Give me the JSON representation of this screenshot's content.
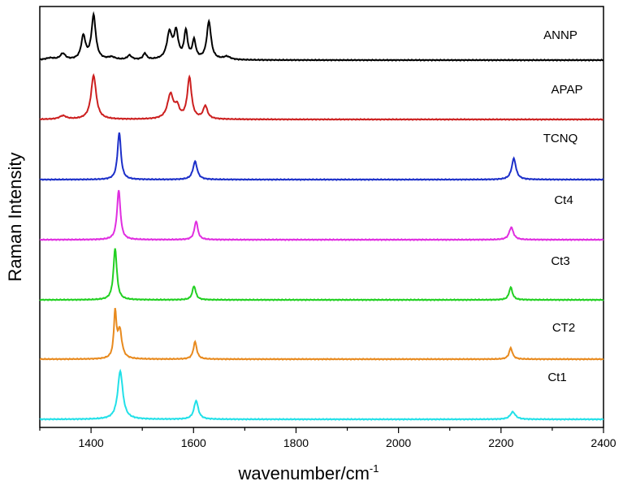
{
  "chart_data": {
    "type": "line",
    "title": "",
    "xlabel": "wavenumber/cm",
    "xlabel_superscript": "-1",
    "ylabel": "Raman Intensity",
    "xlim": [
      1300,
      2400
    ],
    "x_ticks": [
      1400,
      1600,
      1800,
      2000,
      2200,
      2400
    ],
    "grid": false,
    "series": [
      {
        "name": "ANNP",
        "color": "#000000",
        "baseline": 0,
        "peaks": [
          {
            "x": 1320,
            "height": 0.03,
            "width": 10
          },
          {
            "x": 1345,
            "height": 0.1,
            "width": 6
          },
          {
            "x": 1385,
            "height": 0.38,
            "width": 5
          },
          {
            "x": 1405,
            "height": 0.72,
            "width": 5
          },
          {
            "x": 1440,
            "height": 0.04,
            "width": 8
          },
          {
            "x": 1475,
            "height": 0.07,
            "width": 5
          },
          {
            "x": 1505,
            "height": 0.1,
            "width": 4
          },
          {
            "x": 1553,
            "height": 0.43,
            "width": 6
          },
          {
            "x": 1566,
            "height": 0.43,
            "width": 5
          },
          {
            "x": 1585,
            "height": 0.45,
            "width": 4
          },
          {
            "x": 1601,
            "height": 0.3,
            "width": 4
          },
          {
            "x": 1630,
            "height": 0.62,
            "width": 5
          },
          {
            "x": 1665,
            "height": 0.05,
            "width": 8
          }
        ]
      },
      {
        "name": "APAP",
        "color": "#cc1f1f",
        "baseline": 0,
        "peaks": [
          {
            "x": 1345,
            "height": 0.06,
            "width": 8
          },
          {
            "x": 1405,
            "height": 0.75,
            "width": 6
          },
          {
            "x": 1555,
            "height": 0.42,
            "width": 7
          },
          {
            "x": 1568,
            "height": 0.18,
            "width": 5
          },
          {
            "x": 1592,
            "height": 0.7,
            "width": 5
          },
          {
            "x": 1623,
            "height": 0.22,
            "width": 5
          }
        ]
      },
      {
        "name": "TCNQ",
        "color": "#1c2fc9",
        "baseline": 0,
        "peaks": [
          {
            "x": 1455,
            "height": 0.78,
            "width": 4
          },
          {
            "x": 1603,
            "height": 0.3,
            "width": 5
          },
          {
            "x": 2225,
            "height": 0.35,
            "width": 5
          }
        ]
      },
      {
        "name": "Ct4",
        "color": "#e02ee0",
        "baseline": 0,
        "peaks": [
          {
            "x": 1454,
            "height": 0.8,
            "width": 4
          },
          {
            "x": 1605,
            "height": 0.3,
            "width": 4
          },
          {
            "x": 2220,
            "height": 0.2,
            "width": 5
          }
        ]
      },
      {
        "name": "Ct3",
        "color": "#22d022",
        "baseline": 0,
        "peaks": [
          {
            "x": 1447,
            "height": 0.82,
            "width": 4
          },
          {
            "x": 1601,
            "height": 0.22,
            "width": 4
          },
          {
            "x": 2219,
            "height": 0.2,
            "width": 4
          }
        ]
      },
      {
        "name": "CT2",
        "color": "#e88a1e",
        "baseline": 0,
        "peaks": [
          {
            "x": 1447,
            "height": 0.72,
            "width": 3
          },
          {
            "x": 1456,
            "height": 0.45,
            "width": 5
          },
          {
            "x": 1603,
            "height": 0.28,
            "width": 4
          },
          {
            "x": 2219,
            "height": 0.18,
            "width": 4
          }
        ]
      },
      {
        "name": "Ct1",
        "color": "#22e0e8",
        "baseline": 0,
        "peaks": [
          {
            "x": 1457,
            "height": 0.78,
            "width": 6
          },
          {
            "x": 1605,
            "height": 0.3,
            "width": 5
          },
          {
            "x": 2223,
            "height": 0.12,
            "width": 6
          }
        ]
      }
    ]
  }
}
